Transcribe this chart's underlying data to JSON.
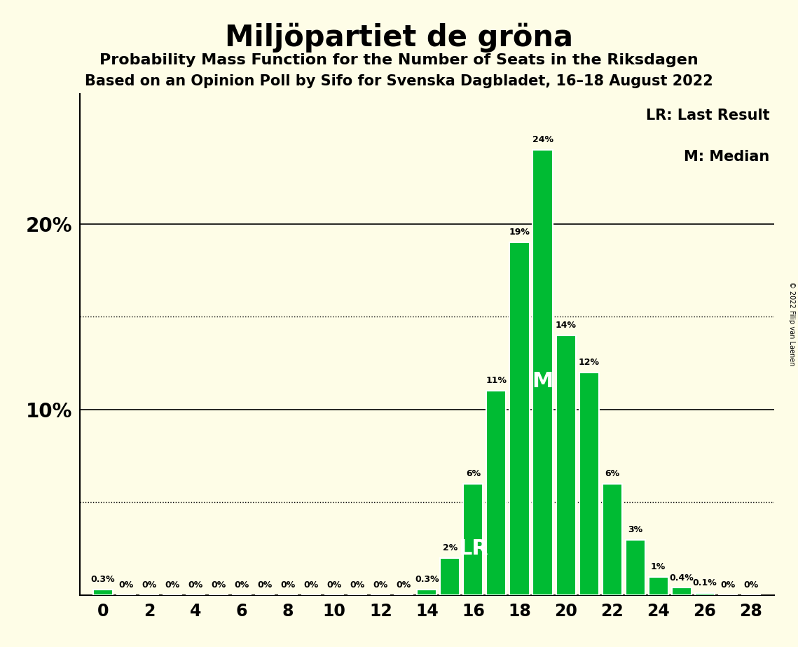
{
  "title": "Miljöpartiet de gröna",
  "subtitle1": "Probability Mass Function for the Number of Seats in the Riksdagen",
  "subtitle2": "Based on an Opinion Poll by Sifo for Svenska Dagbladet, 16–18 August 2022",
  "copyright": "© 2022 Filip van Laenen",
  "background_color": "#fefde7",
  "bar_color": "#00bb33",
  "bar_edge_color": "#ffffff",
  "seats": [
    0,
    1,
    2,
    3,
    4,
    5,
    6,
    7,
    8,
    9,
    10,
    11,
    12,
    13,
    14,
    15,
    16,
    17,
    18,
    19,
    20,
    21,
    22,
    23,
    24,
    25,
    26,
    27,
    28
  ],
  "probabilities": [
    0.3,
    0.0,
    0.0,
    0.0,
    0.0,
    0.0,
    0.0,
    0.0,
    0.0,
    0.0,
    0.0,
    0.0,
    0.0,
    0.0,
    0.3,
    2.0,
    6.0,
    11.0,
    19.0,
    24.0,
    14.0,
    12.0,
    6.0,
    3.0,
    1.0,
    0.4,
    0.1,
    0.0,
    0.0
  ],
  "ylim": [
    0,
    27
  ],
  "hlines_solid": [
    10,
    20
  ],
  "hlines_dotted": [
    5,
    15
  ],
  "last_result_seat": 16,
  "median_seat": 19,
  "legend_LR": "LR: Last Result",
  "legend_M": "M: Median",
  "label_fontsize": 9,
  "title_fontsize": 30,
  "subtitle_fontsize": 16,
  "subtitle2_fontsize": 15,
  "ytick_fontsize": 20,
  "xtick_fontsize": 17
}
